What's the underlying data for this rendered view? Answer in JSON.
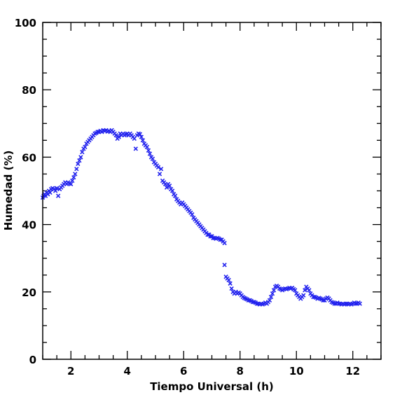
{
  "chart_data": {
    "type": "scatter",
    "xlabel": "Tiempo Universal (h)",
    "ylabel": "Humedad (%)",
    "xlim": [
      1,
      13
    ],
    "ylim": [
      0,
      100
    ],
    "x_major_ticks": [
      2,
      4,
      6,
      8,
      10,
      12
    ],
    "x_tick_labels": [
      "2",
      "4",
      "6",
      "8",
      "10",
      "12"
    ],
    "y_major_ticks": [
      0,
      20,
      40,
      60,
      80,
      100
    ],
    "y_tick_labels": [
      "0",
      "20",
      "40",
      "60",
      "80",
      "100"
    ],
    "marker": "x",
    "color": "#2222ee",
    "grid": false,
    "points": [
      [
        1.0,
        48.0
      ],
      [
        1.03,
        48.5
      ],
      [
        1.07,
        49.0
      ],
      [
        1.1,
        48.5
      ],
      [
        1.14,
        49.5
      ],
      [
        1.18,
        49.0
      ],
      [
        1.22,
        50.0
      ],
      [
        1.26,
        49.5
      ],
      [
        1.3,
        50.5
      ],
      [
        1.35,
        50.8
      ],
      [
        1.4,
        50.5
      ],
      [
        1.45,
        50.0
      ],
      [
        1.5,
        50.8
      ],
      [
        1.55,
        48.5
      ],
      [
        1.6,
        50.5
      ],
      [
        1.65,
        51.0
      ],
      [
        1.7,
        51.5
      ],
      [
        1.75,
        52.0
      ],
      [
        1.8,
        52.5
      ],
      [
        1.85,
        52.0
      ],
      [
        1.9,
        52.5
      ],
      [
        1.95,
        52.2
      ],
      [
        2.0,
        52.0
      ],
      [
        2.05,
        53.0
      ],
      [
        2.1,
        54.0
      ],
      [
        2.15,
        55.0
      ],
      [
        2.2,
        56.5
      ],
      [
        2.25,
        58.0
      ],
      [
        2.3,
        59.0
      ],
      [
        2.35,
        60.0
      ],
      [
        2.4,
        61.5
      ],
      [
        2.45,
        62.5
      ],
      [
        2.5,
        63.0
      ],
      [
        2.55,
        64.0
      ],
      [
        2.6,
        64.5
      ],
      [
        2.65,
        65.0
      ],
      [
        2.7,
        65.5
      ],
      [
        2.75,
        66.0
      ],
      [
        2.8,
        66.5
      ],
      [
        2.85,
        67.0
      ],
      [
        2.9,
        67.2
      ],
      [
        2.95,
        67.5
      ],
      [
        3.0,
        67.5
      ],
      [
        3.05,
        67.8
      ],
      [
        3.1,
        67.5
      ],
      [
        3.15,
        68.0
      ],
      [
        3.2,
        67.8
      ],
      [
        3.25,
        68.0
      ],
      [
        3.3,
        67.6
      ],
      [
        3.35,
        67.8
      ],
      [
        3.4,
        67.5
      ],
      [
        3.45,
        68.0
      ],
      [
        3.5,
        67.5
      ],
      [
        3.55,
        67.0
      ],
      [
        3.6,
        66.5
      ],
      [
        3.65,
        65.5
      ],
      [
        3.7,
        66.0
      ],
      [
        3.75,
        67.0
      ],
      [
        3.8,
        66.5
      ],
      [
        3.85,
        67.0
      ],
      [
        3.9,
        66.5
      ],
      [
        3.95,
        66.8
      ],
      [
        4.0,
        67.0
      ],
      [
        4.05,
        66.5
      ],
      [
        4.1,
        67.0
      ],
      [
        4.15,
        66.5
      ],
      [
        4.2,
        66.0
      ],
      [
        4.25,
        65.5
      ],
      [
        4.3,
        62.5
      ],
      [
        4.35,
        66.5
      ],
      [
        4.4,
        67.0
      ],
      [
        4.45,
        66.8
      ],
      [
        4.5,
        66.0
      ],
      [
        4.55,
        65.0
      ],
      [
        4.6,
        64.0
      ],
      [
        4.65,
        63.5
      ],
      [
        4.7,
        63.0
      ],
      [
        4.75,
        62.0
      ],
      [
        4.8,
        61.0
      ],
      [
        4.85,
        60.0
      ],
      [
        4.9,
        59.5
      ],
      [
        4.95,
        58.5
      ],
      [
        5.0,
        58.0
      ],
      [
        5.05,
        57.5
      ],
      [
        5.1,
        57.0
      ],
      [
        5.15,
        55.0
      ],
      [
        5.2,
        56.5
      ],
      [
        5.25,
        53.0
      ],
      [
        5.3,
        52.5
      ],
      [
        5.35,
        52.0
      ],
      [
        5.4,
        51.0
      ],
      [
        5.45,
        52.0
      ],
      [
        5.5,
        51.5
      ],
      [
        5.55,
        50.5
      ],
      [
        5.6,
        50.0
      ],
      [
        5.65,
        49.0
      ],
      [
        5.7,
        48.5
      ],
      [
        5.75,
        47.5
      ],
      [
        5.8,
        47.0
      ],
      [
        5.85,
        46.5
      ],
      [
        5.9,
        46.0
      ],
      [
        5.95,
        46.5
      ],
      [
        6.0,
        46.0
      ],
      [
        6.05,
        45.5
      ],
      [
        6.1,
        45.0
      ],
      [
        6.15,
        44.5
      ],
      [
        6.2,
        44.0
      ],
      [
        6.25,
        43.5
      ],
      [
        6.3,
        43.0
      ],
      [
        6.35,
        42.0
      ],
      [
        6.4,
        41.5
      ],
      [
        6.45,
        41.0
      ],
      [
        6.5,
        40.5
      ],
      [
        6.55,
        40.0
      ],
      [
        6.6,
        39.5
      ],
      [
        6.65,
        39.0
      ],
      [
        6.7,
        38.5
      ],
      [
        6.75,
        38.0
      ],
      [
        6.8,
        37.5
      ],
      [
        6.85,
        37.0
      ],
      [
        6.9,
        37.0
      ],
      [
        6.95,
        36.5
      ],
      [
        7.0,
        36.5
      ],
      [
        7.05,
        36.0
      ],
      [
        7.1,
        36.0
      ],
      [
        7.15,
        35.8
      ],
      [
        7.2,
        36.0
      ],
      [
        7.25,
        35.8
      ],
      [
        7.3,
        35.5
      ],
      [
        7.35,
        35.5
      ],
      [
        7.4,
        35.0
      ],
      [
        7.45,
        34.5
      ],
      [
        7.45,
        28.0
      ],
      [
        7.5,
        24.5
      ],
      [
        7.55,
        24.0
      ],
      [
        7.6,
        23.5
      ],
      [
        7.65,
        22.5
      ],
      [
        7.7,
        21.0
      ],
      [
        7.75,
        20.0
      ],
      [
        7.8,
        19.5
      ],
      [
        7.85,
        20.0
      ],
      [
        7.9,
        19.5
      ],
      [
        7.95,
        19.8
      ],
      [
        8.0,
        19.5
      ],
      [
        8.05,
        19.0
      ],
      [
        8.1,
        18.5
      ],
      [
        8.15,
        18.2
      ],
      [
        8.2,
        18.0
      ],
      [
        8.25,
        17.8
      ],
      [
        8.3,
        17.5
      ],
      [
        8.35,
        17.5
      ],
      [
        8.4,
        17.3
      ],
      [
        8.45,
        17.0
      ],
      [
        8.5,
        17.0
      ],
      [
        8.55,
        16.8
      ],
      [
        8.6,
        16.5
      ],
      [
        8.65,
        16.5
      ],
      [
        8.7,
        16.3
      ],
      [
        8.75,
        16.5
      ],
      [
        8.8,
        16.3
      ],
      [
        8.85,
        16.5
      ],
      [
        8.9,
        16.8
      ],
      [
        8.95,
        16.5
      ],
      [
        9.0,
        17.0
      ],
      [
        9.05,
        17.5
      ],
      [
        9.1,
        18.5
      ],
      [
        9.15,
        19.5
      ],
      [
        9.2,
        20.5
      ],
      [
        9.25,
        21.5
      ],
      [
        9.3,
        21.8
      ],
      [
        9.35,
        21.5
      ],
      [
        9.4,
        21.0
      ],
      [
        9.45,
        20.8
      ],
      [
        9.5,
        20.5
      ],
      [
        9.55,
        20.8
      ],
      [
        9.6,
        21.0
      ],
      [
        9.65,
        20.8
      ],
      [
        9.7,
        21.0
      ],
      [
        9.75,
        21.2
      ],
      [
        9.8,
        21.0
      ],
      [
        9.85,
        21.2
      ],
      [
        9.9,
        20.8
      ],
      [
        9.95,
        20.5
      ],
      [
        10.0,
        19.5
      ],
      [
        10.05,
        19.0
      ],
      [
        10.1,
        18.5
      ],
      [
        10.15,
        18.0
      ],
      [
        10.2,
        18.5
      ],
      [
        10.25,
        19.0
      ],
      [
        10.3,
        20.5
      ],
      [
        10.35,
        21.5
      ],
      [
        10.4,
        21.0
      ],
      [
        10.45,
        20.5
      ],
      [
        10.5,
        19.5
      ],
      [
        10.55,
        19.0
      ],
      [
        10.6,
        18.5
      ],
      [
        10.65,
        18.5
      ],
      [
        10.7,
        18.3
      ],
      [
        10.75,
        18.0
      ],
      [
        10.8,
        18.2
      ],
      [
        10.85,
        18.0
      ],
      [
        10.9,
        17.8
      ],
      [
        10.95,
        17.5
      ],
      [
        11.0,
        17.5
      ],
      [
        11.05,
        18.0
      ],
      [
        11.1,
        18.3
      ],
      [
        11.15,
        18.0
      ],
      [
        11.2,
        17.5
      ],
      [
        11.25,
        17.0
      ],
      [
        11.3,
        16.8
      ],
      [
        11.35,
        16.5
      ],
      [
        11.4,
        16.5
      ],
      [
        11.45,
        16.8
      ],
      [
        11.5,
        16.5
      ],
      [
        11.55,
        16.5
      ],
      [
        11.6,
        16.3
      ],
      [
        11.65,
        16.5
      ],
      [
        11.7,
        16.3
      ],
      [
        11.75,
        16.5
      ],
      [
        11.8,
        16.5
      ],
      [
        11.85,
        16.3
      ],
      [
        11.9,
        16.5
      ],
      [
        11.95,
        16.3
      ],
      [
        12.0,
        16.5
      ],
      [
        12.05,
        16.8
      ],
      [
        12.1,
        16.5
      ],
      [
        12.15,
        16.5
      ],
      [
        12.2,
        16.8
      ],
      [
        12.25,
        16.5
      ]
    ]
  }
}
